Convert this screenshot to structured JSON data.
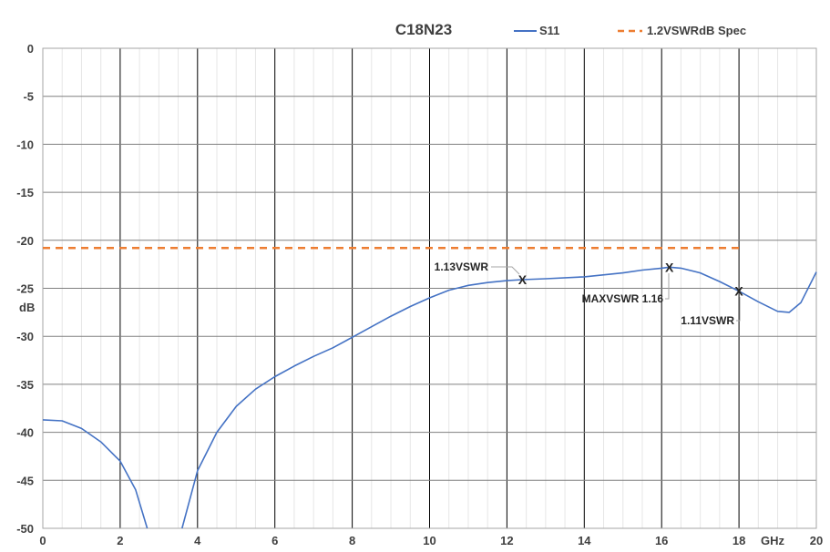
{
  "chart_data": {
    "type": "line",
    "title": "C18N23",
    "xlabel": "GHz",
    "ylabel": "dB",
    "xlim": [
      0,
      20
    ],
    "ylim": [
      -50,
      0
    ],
    "x_ticks": [
      0,
      2,
      4,
      6,
      8,
      10,
      12,
      14,
      16,
      18,
      20
    ],
    "y_ticks": [
      0,
      -5,
      -10,
      -15,
      -20,
      -25,
      -30,
      -35,
      -40,
      -45,
      -50
    ],
    "grid": true,
    "legend_position": "top",
    "series": [
      {
        "name": "S11",
        "color": "#4472c4",
        "style": "solid",
        "points": [
          [
            0,
            -38.7
          ],
          [
            0.5,
            -38.8
          ],
          [
            1.0,
            -39.6
          ],
          [
            1.5,
            -41.0
          ],
          [
            2.0,
            -43.0
          ],
          [
            2.4,
            -46.0
          ],
          [
            2.7,
            -50.0
          ],
          [
            2.8,
            null
          ],
          [
            3.5,
            null
          ],
          [
            3.6,
            -50.0
          ],
          [
            3.8,
            -47.0
          ],
          [
            4.0,
            -44.0
          ],
          [
            4.5,
            -40.0
          ],
          [
            5.0,
            -37.3
          ],
          [
            5.5,
            -35.5
          ],
          [
            6.0,
            -34.2
          ],
          [
            6.5,
            -33.1
          ],
          [
            7.0,
            -32.1
          ],
          [
            7.5,
            -31.2
          ],
          [
            8.0,
            -30.1
          ],
          [
            8.5,
            -29.0
          ],
          [
            9.0,
            -27.9
          ],
          [
            9.5,
            -26.9
          ],
          [
            10.0,
            -26.0
          ],
          [
            10.5,
            -25.2
          ],
          [
            11.0,
            -24.7
          ],
          [
            11.5,
            -24.4
          ],
          [
            12.0,
            -24.2
          ],
          [
            12.4,
            -24.1
          ],
          [
            13.0,
            -24.0
          ],
          [
            14.0,
            -23.8
          ],
          [
            15.0,
            -23.4
          ],
          [
            15.5,
            -23.1
          ],
          [
            16.0,
            -22.9
          ],
          [
            16.2,
            -22.8
          ],
          [
            16.5,
            -22.9
          ],
          [
            17.0,
            -23.4
          ],
          [
            17.5,
            -24.3
          ],
          [
            18.0,
            -25.3
          ],
          [
            18.5,
            -26.4
          ],
          [
            19.0,
            -27.4
          ],
          [
            19.3,
            -27.5
          ],
          [
            19.6,
            -26.5
          ],
          [
            20.0,
            -23.3
          ]
        ]
      },
      {
        "name": "1.2VSWRdB Spec",
        "color": "#ed7d31",
        "style": "dashed",
        "points": [
          [
            0,
            -20.8
          ],
          [
            18,
            -20.8
          ]
        ]
      }
    ],
    "markers": [
      {
        "x": 12.4,
        "y": -24.1,
        "symbol": "X",
        "label": "1.13VSWR"
      },
      {
        "x": 16.2,
        "y": -22.8,
        "symbol": "X",
        "label": "MAXVSWR 1.16"
      },
      {
        "x": 18.0,
        "y": -25.3,
        "symbol": "X",
        "label": "1.11VSWR"
      }
    ]
  }
}
